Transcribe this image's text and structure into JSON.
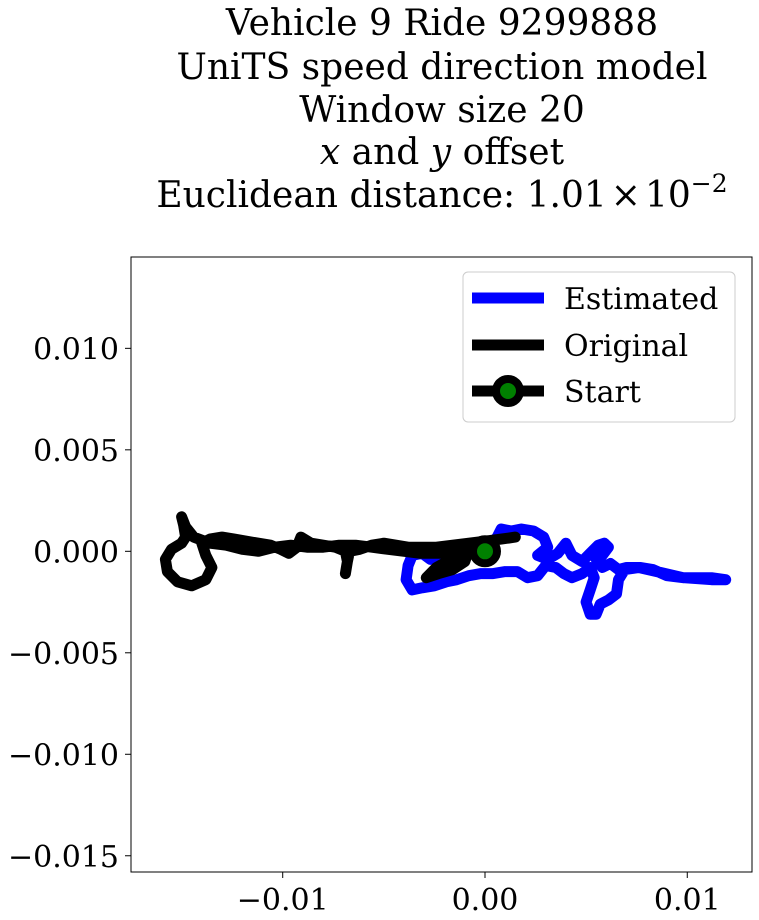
{
  "chart_data": {
    "type": "line",
    "title": {
      "line1": "Vehicle 9 Ride 9299888",
      "line2": "UniTS speed direction model",
      "line3": "Window size 20",
      "line4": {
        "x_var": "x",
        "mid": " and ",
        "y_var": "y",
        "end": " offset"
      },
      "line5": {
        "prefix": "Euclidean distance: ",
        "mantissa": "1.01",
        "times": "×",
        "base": "10",
        "exponent": "−2"
      }
    },
    "xlabel": "",
    "ylabel": "",
    "xlim": [
      -0.0175,
      0.0132
    ],
    "ylim": [
      -0.0158,
      0.0145
    ],
    "grid": false,
    "legend_position": "top-right",
    "x_ticks": [
      {
        "value": -0.01,
        "label": "−0.01"
      },
      {
        "value": 0.0,
        "label": "0.00"
      },
      {
        "value": 0.01,
        "label": "0.01"
      }
    ],
    "y_ticks": [
      {
        "value": 0.01,
        "label": "0.010"
      },
      {
        "value": 0.005,
        "label": "0.005"
      },
      {
        "value": 0.0,
        "label": "0.000"
      },
      {
        "value": -0.005,
        "label": "−0.005"
      },
      {
        "value": -0.01,
        "label": "−0.010"
      },
      {
        "value": -0.015,
        "label": "−0.015"
      }
    ],
    "series": [
      {
        "name": "Estimated",
        "color": "#0000ff",
        "points": [
          [
            0.0,
            0.0
          ],
          [
            0.0006,
            0.0007
          ],
          [
            0.0008,
            0.0011
          ],
          [
            0.0013,
            0.001
          ],
          [
            0.0018,
            0.0011
          ],
          [
            0.0024,
            0.001
          ],
          [
            0.0029,
            0.0007
          ],
          [
            0.0031,
            0.0002
          ],
          [
            0.0026,
            -0.0002
          ],
          [
            0.0031,
            -0.0004
          ],
          [
            0.0036,
            -0.0001
          ],
          [
            0.004,
            0.0004
          ],
          [
            0.0043,
            -0.0002
          ],
          [
            0.0048,
            -0.0005
          ],
          [
            0.0052,
            -0.0001
          ],
          [
            0.0056,
            0.0003
          ],
          [
            0.0059,
            0.0004
          ],
          [
            0.0061,
            0.0002
          ],
          [
            0.0058,
            -0.0002
          ],
          [
            0.0055,
            -0.0004
          ],
          [
            0.0058,
            -0.0008
          ],
          [
            0.0062,
            -0.0006
          ],
          [
            0.0066,
            -0.0009
          ],
          [
            0.007,
            -0.0008
          ],
          [
            0.0077,
            -0.0008
          ],
          [
            0.0083,
            -0.0009
          ],
          [
            0.009,
            -0.0012
          ],
          [
            0.0098,
            -0.0013
          ],
          [
            0.0105,
            -0.0013
          ],
          [
            0.0112,
            -0.0013
          ],
          [
            0.0119,
            -0.0014
          ],
          [
            0.0112,
            -0.0014
          ],
          [
            0.0098,
            -0.0013
          ],
          [
            0.0085,
            -0.001
          ],
          [
            0.0076,
            -0.0008
          ],
          [
            0.0069,
            -0.0009
          ],
          [
            0.0066,
            -0.0014
          ],
          [
            0.0065,
            -0.0021
          ],
          [
            0.0061,
            -0.0024
          ],
          [
            0.0057,
            -0.0026
          ],
          [
            0.0055,
            -0.0031
          ],
          [
            0.0052,
            -0.0031
          ],
          [
            0.005,
            -0.0025
          ],
          [
            0.0052,
            -0.0019
          ],
          [
            0.0054,
            -0.0013
          ],
          [
            0.0052,
            -0.0008
          ],
          [
            0.0048,
            -0.0011
          ],
          [
            0.0043,
            -0.0013
          ],
          [
            0.0039,
            -0.0011
          ],
          [
            0.0035,
            -0.0008
          ],
          [
            0.003,
            -0.0007
          ],
          [
            0.0026,
            -0.0012
          ],
          [
            0.0021,
            -0.0013
          ],
          [
            0.0016,
            -0.001
          ],
          [
            0.001,
            -0.001
          ],
          [
            0.0004,
            -0.0011
          ],
          [
            -0.0002,
            -0.0011
          ],
          [
            -0.0008,
            -0.0012
          ],
          [
            -0.0014,
            -0.0014
          ],
          [
            -0.0019,
            -0.0015
          ],
          [
            -0.0025,
            -0.0017
          ],
          [
            -0.0031,
            -0.0018
          ],
          [
            -0.0036,
            -0.0019
          ],
          [
            -0.0039,
            -0.0014
          ],
          [
            -0.0038,
            -0.0007
          ],
          [
            -0.0036,
            -0.0002
          ],
          [
            -0.0031,
            -0.0001
          ],
          [
            -0.0027,
            -0.0004
          ],
          [
            -0.0022,
            -0.0003
          ],
          [
            -0.0016,
            -0.0001
          ],
          [
            -0.001,
            -0.0002
          ],
          [
            -0.0005,
            0.0001
          ],
          [
            0.0,
            0.0
          ]
        ]
      },
      {
        "name": "Original",
        "color": "#000000",
        "points": [
          [
            0.0015,
            0.0007
          ],
          [
            0.0008,
            0.0006
          ],
          [
            0.0,
            0.0005
          ],
          [
            -0.0008,
            0.0004
          ],
          [
            -0.0016,
            0.0003
          ],
          [
            -0.0024,
            0.0002
          ],
          [
            -0.003,
            0.0002
          ],
          [
            -0.0027,
            0.0001
          ],
          [
            -0.002,
            0.0002
          ],
          [
            -0.0012,
            0.0002
          ],
          [
            -0.0008,
            0.0001
          ],
          [
            -0.001,
            -0.0005
          ],
          [
            -0.0016,
            -0.0009
          ],
          [
            -0.0023,
            -0.0011
          ],
          [
            -0.0029,
            -0.0013
          ],
          [
            -0.0024,
            -0.0008
          ],
          [
            -0.0015,
            -0.0003
          ],
          [
            -0.0008,
            0.0
          ],
          [
            -0.0014,
            0.0002
          ],
          [
            -0.0022,
            0.0002
          ],
          [
            -0.003,
            0.0002
          ],
          [
            -0.0038,
            0.0002
          ],
          [
            -0.0044,
            0.0003
          ],
          [
            -0.005,
            0.0004
          ],
          [
            -0.0056,
            0.0003
          ],
          [
            -0.0062,
            0.0001
          ],
          [
            -0.0067,
            0.0
          ],
          [
            -0.0068,
            -0.0005
          ],
          [
            -0.0069,
            -0.0011
          ],
          [
            -0.0068,
            -0.0005
          ],
          [
            -0.0069,
            0.0
          ],
          [
            -0.0074,
            0.0002
          ],
          [
            -0.008,
            0.0003
          ],
          [
            -0.0086,
            0.0004
          ],
          [
            -0.0091,
            0.0007
          ],
          [
            -0.0093,
            0.0002
          ],
          [
            -0.0097,
            -0.0001
          ],
          [
            -0.0101,
            0.0001
          ],
          [
            -0.0106,
            0.0003
          ],
          [
            -0.0112,
            0.0004
          ],
          [
            -0.0118,
            0.0005
          ],
          [
            -0.0124,
            0.0006
          ],
          [
            -0.013,
            0.0007
          ],
          [
            -0.0136,
            0.0006
          ],
          [
            -0.014,
            0.0004
          ],
          [
            -0.0138,
            -0.0002
          ],
          [
            -0.0135,
            -0.0008
          ],
          [
            -0.0138,
            -0.0014
          ],
          [
            -0.0145,
            -0.0017
          ],
          [
            -0.0152,
            -0.0015
          ],
          [
            -0.0157,
            -0.001
          ],
          [
            -0.0158,
            -0.0004
          ],
          [
            -0.0155,
            0.0001
          ],
          [
            -0.015,
            0.0004
          ],
          [
            -0.0148,
            0.0007
          ],
          [
            -0.0149,
            0.0013
          ],
          [
            -0.015,
            0.0017
          ],
          [
            -0.0148,
            0.0012
          ],
          [
            -0.0144,
            0.0007
          ],
          [
            -0.0136,
            0.0004
          ],
          [
            -0.0128,
            0.0003
          ],
          [
            -0.012,
            0.0001
          ],
          [
            -0.0112,
            0.0
          ],
          [
            -0.0104,
            0.0002
          ],
          [
            -0.0096,
            0.0003
          ],
          [
            -0.0088,
            0.0002
          ],
          [
            -0.008,
            0.0002
          ],
          [
            -0.0072,
            0.0003
          ],
          [
            -0.0064,
            0.0003
          ],
          [
            -0.0056,
            0.0002
          ],
          [
            -0.0048,
            0.0001
          ],
          [
            -0.004,
            0.0
          ],
          [
            -0.0032,
            -0.0001
          ],
          [
            -0.0024,
            -0.0001
          ],
          [
            -0.0016,
            -0.0001
          ],
          [
            -0.0008,
            0.0
          ],
          [
            0.0,
            0.0
          ]
        ]
      }
    ],
    "start": {
      "name": "Start",
      "x": 0.0,
      "y": 0.0,
      "marker_color": "#008000",
      "marker_edge_color": "#000000",
      "line_color": "#000000"
    }
  }
}
